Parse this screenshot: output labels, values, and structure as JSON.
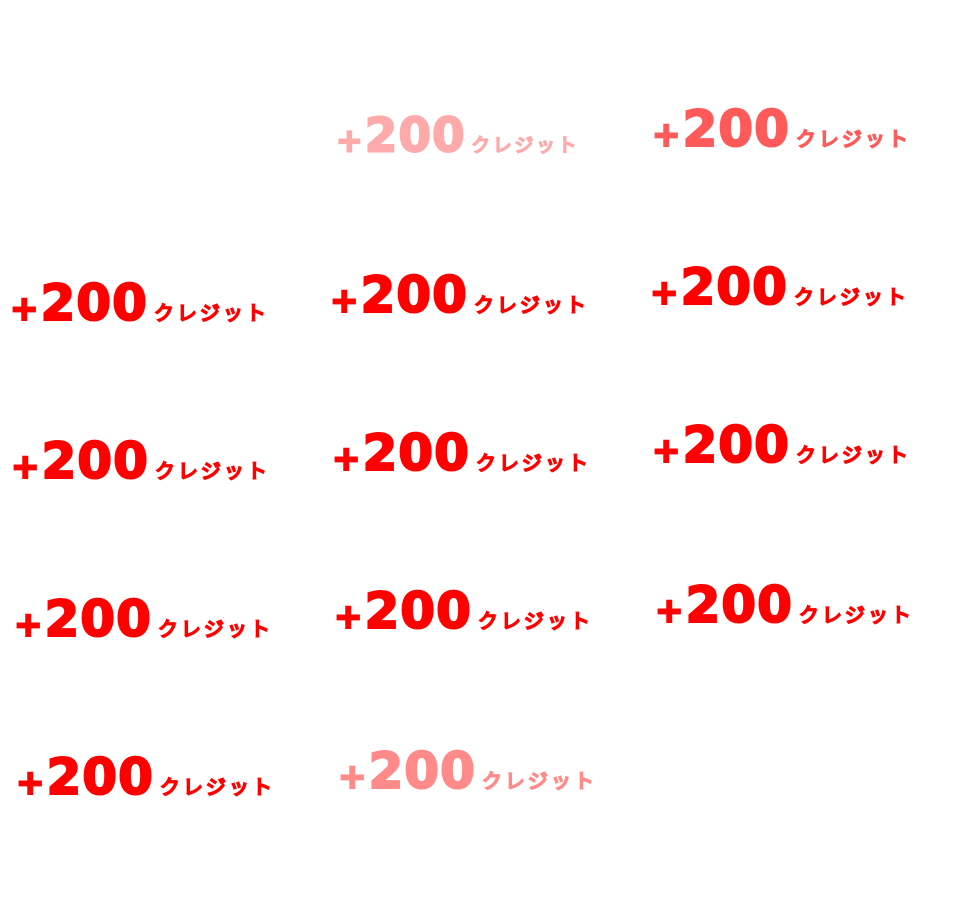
{
  "sprites": [
    {
      "amount": "+200",
      "unit": "クレジット",
      "color": "#ffaaaa"
    },
    {
      "amount": "+200",
      "unit": "クレジット",
      "color": "#ff5a5a"
    },
    {
      "amount": "+200",
      "unit": "クレジット",
      "color": "#ff0000"
    },
    {
      "amount": "+200",
      "unit": "クレジット",
      "color": "#ff0000"
    },
    {
      "amount": "+200",
      "unit": "クレジット",
      "color": "#ff0000"
    },
    {
      "amount": "+200",
      "unit": "クレジット",
      "color": "#ff0000"
    },
    {
      "amount": "+200",
      "unit": "クレジット",
      "color": "#ff0000"
    },
    {
      "amount": "+200",
      "unit": "クレジット",
      "color": "#ff0000"
    },
    {
      "amount": "+200",
      "unit": "クレジット",
      "color": "#ff0000"
    },
    {
      "amount": "+200",
      "unit": "クレジット",
      "color": "#ff0000"
    },
    {
      "amount": "+200",
      "unit": "クレジット",
      "color": "#ff0000"
    },
    {
      "amount": "+200",
      "unit": "クレジット",
      "color": "#ff0000"
    },
    {
      "amount": "+200",
      "unit": "クレジット",
      "color": "#ff8a8a"
    }
  ]
}
